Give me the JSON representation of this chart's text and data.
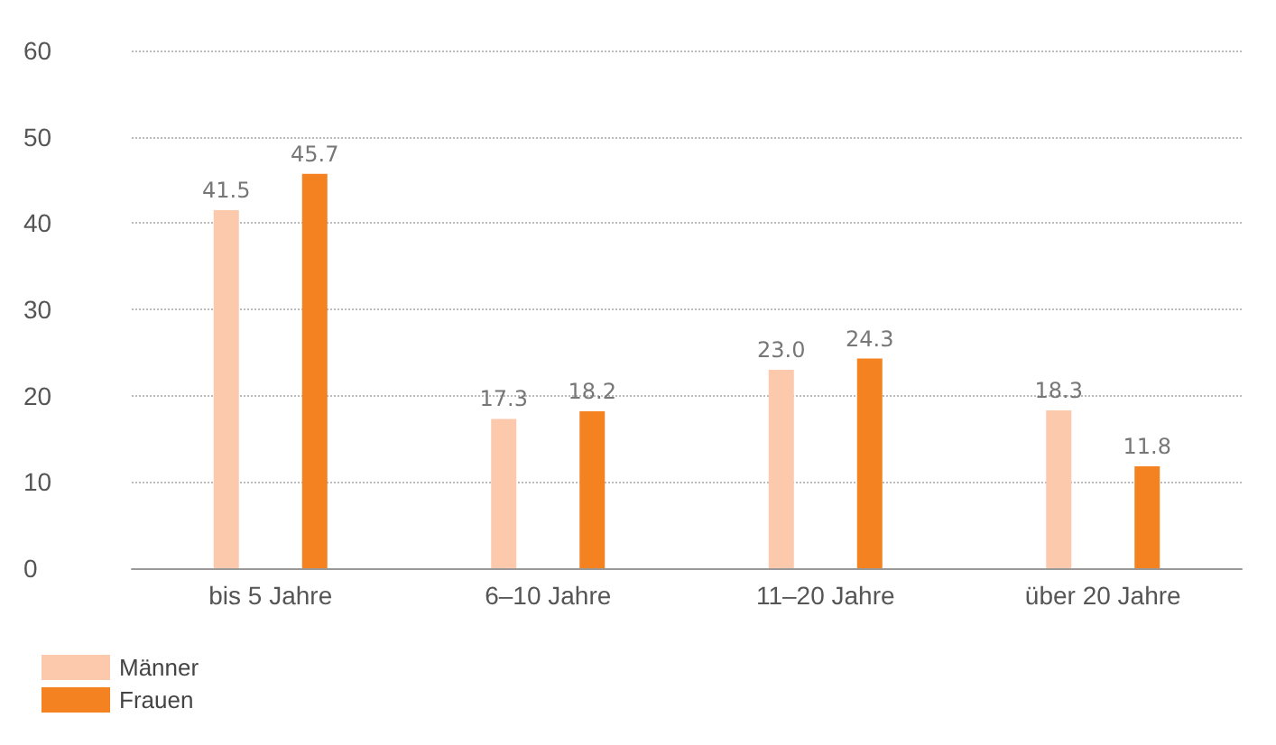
{
  "chart_data": {
    "type": "bar",
    "categories": [
      "bis 5 Jahre",
      "6–10 Jahre",
      "11–20 Jahre",
      "über 20 Jahre"
    ],
    "series": [
      {
        "name": "Männer",
        "color": "#fdc9ad",
        "values": [
          41.5,
          17.3,
          23.0,
          18.3
        ],
        "value_labels": [
          "41.5",
          "17.3",
          "23.0",
          "18.3"
        ]
      },
      {
        "name": "Frauen",
        "color": "#f58220",
        "values": [
          45.7,
          18.2,
          24.3,
          11.8
        ],
        "value_labels": [
          "45.7",
          "18.2",
          "24.3",
          "11.8"
        ]
      }
    ],
    "ylim": [
      0,
      60
    ],
    "yticks": [
      0,
      10,
      20,
      30,
      40,
      50,
      60
    ],
    "grid": "y",
    "legend": "bottom left"
  }
}
